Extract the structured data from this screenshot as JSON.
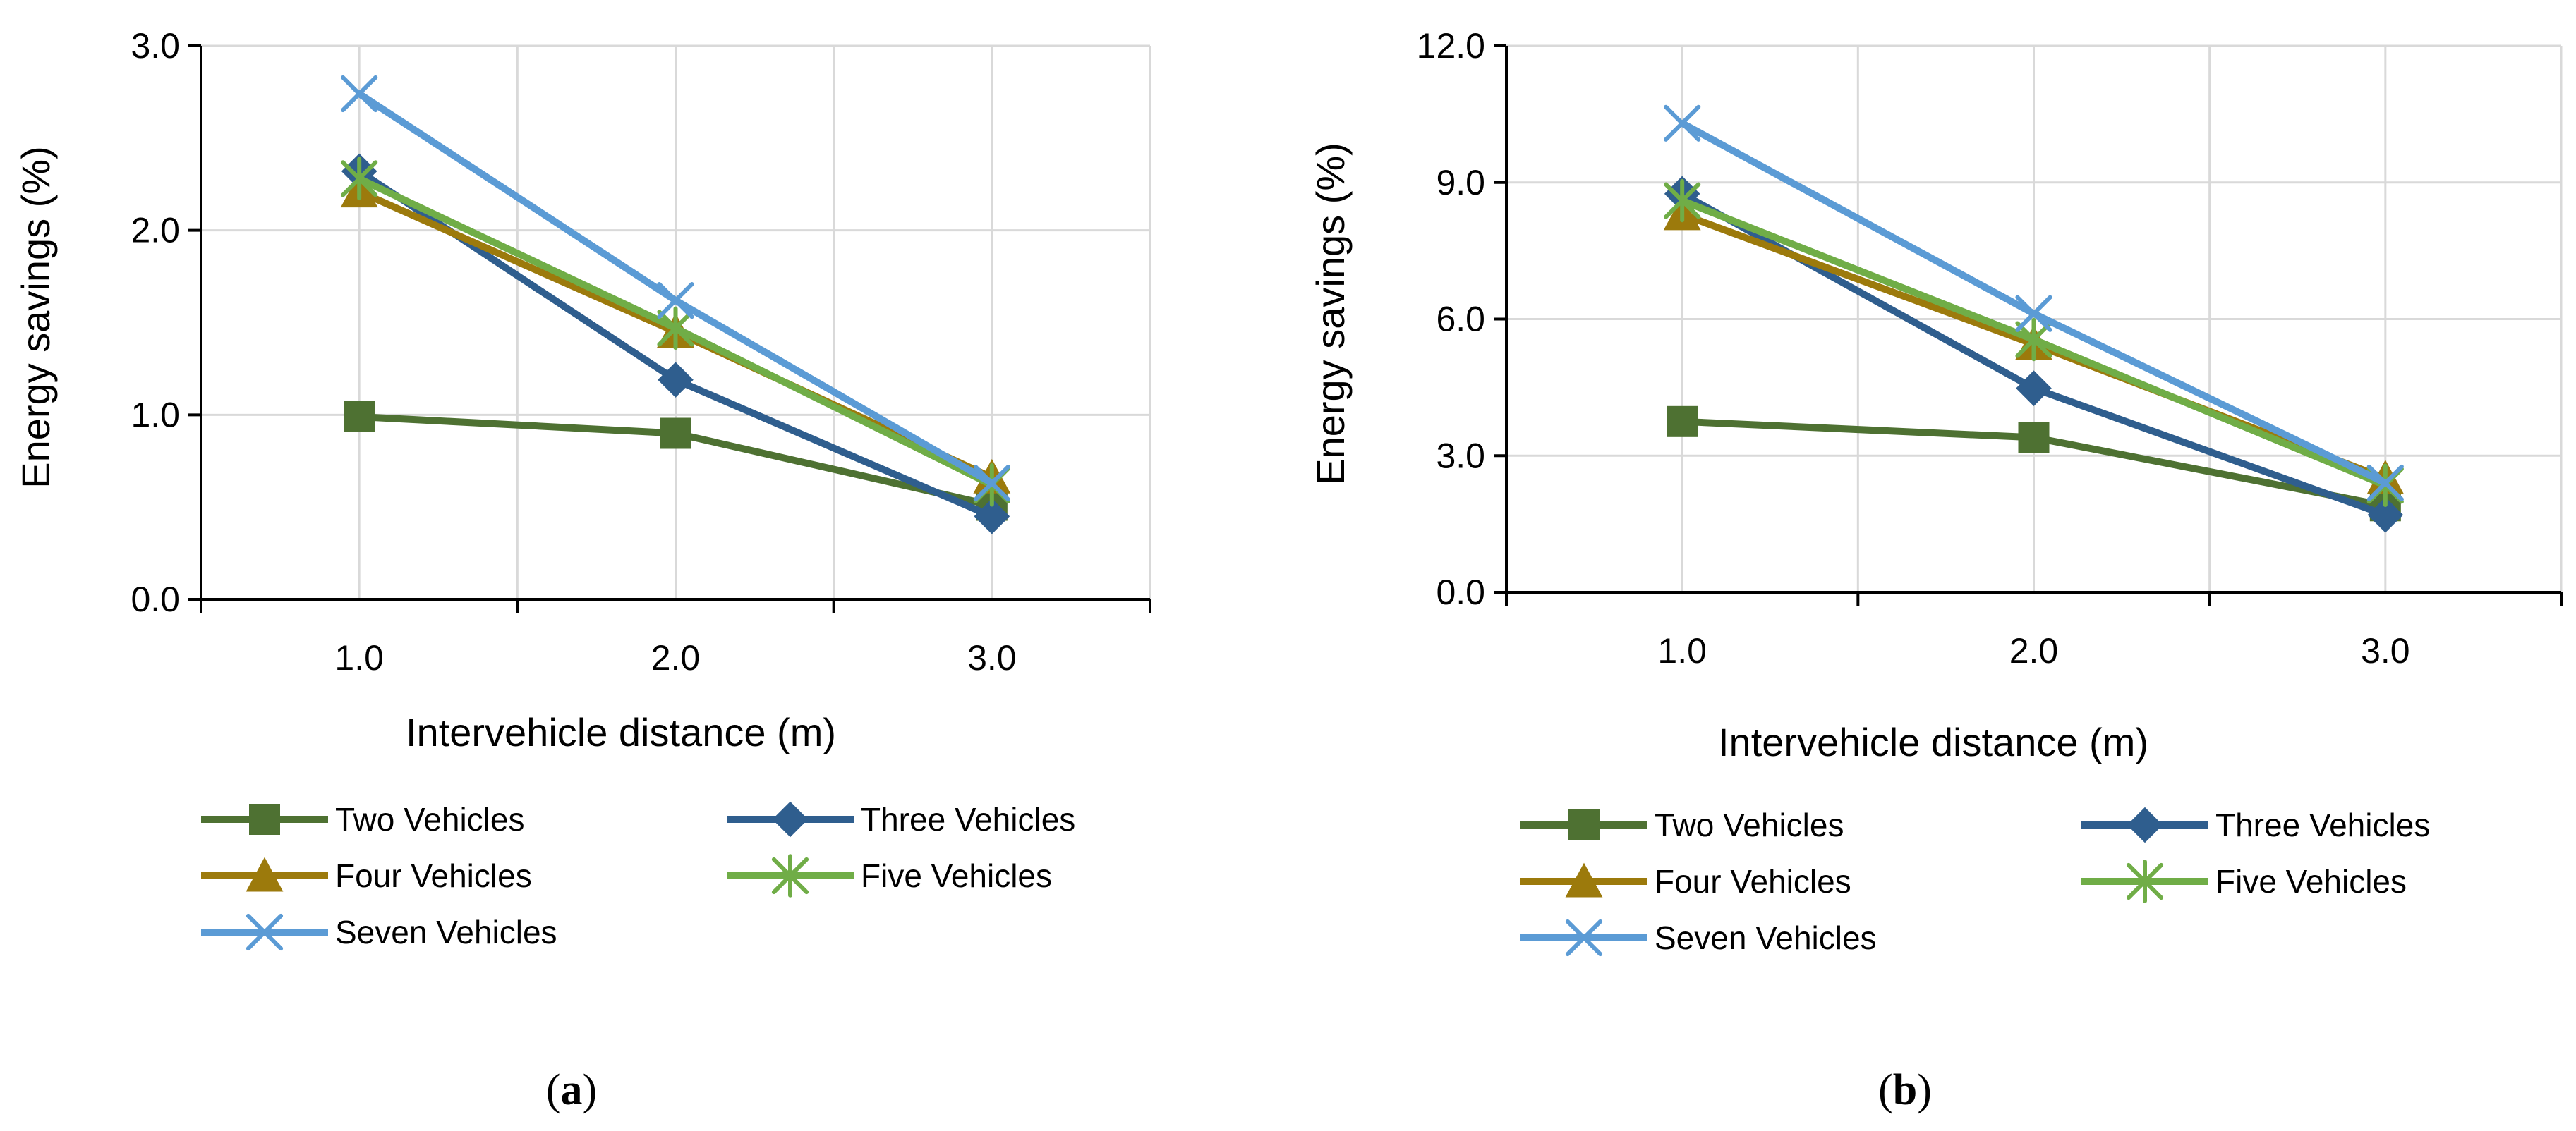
{
  "chart_data": [
    {
      "type": "line",
      "panel_label": "a",
      "title": "",
      "xlabel": "Intervehicle distance (m)",
      "ylabel": "Energy savings (%)",
      "x": [
        1.0,
        2.0,
        3.0
      ],
      "x_tick_labels": [
        "1.0",
        "2.0",
        "3.0"
      ],
      "xlim": [
        0.5,
        3.5
      ],
      "ylim": [
        0.0,
        3.0
      ],
      "y_ticks": [
        0.0,
        1.0,
        2.0,
        3.0
      ],
      "y_tick_labels": [
        "0.0",
        "1.0",
        "2.0",
        "3.0"
      ],
      "grid": true,
      "legend_position": "bottom",
      "series": [
        {
          "name": "Two Vehicles",
          "values": [
            0.99,
            0.9,
            0.51
          ],
          "color": "#4E7132",
          "marker": "square"
        },
        {
          "name": "Three Vehicles",
          "values": [
            2.32,
            1.19,
            0.45
          ],
          "color": "#2F5E8E",
          "marker": "diamond"
        },
        {
          "name": "Four Vehicles",
          "values": [
            2.21,
            1.45,
            0.66
          ],
          "color": "#9C7A0C",
          "marker": "triangle"
        },
        {
          "name": "Five Vehicles",
          "values": [
            2.28,
            1.47,
            0.62
          ],
          "color": "#70AD47",
          "marker": "star"
        },
        {
          "name": "Seven Vehicles",
          "values": [
            2.74,
            1.62,
            0.63
          ],
          "color": "#5B9BD5",
          "marker": "x"
        }
      ]
    },
    {
      "type": "line",
      "panel_label": "b",
      "title": "",
      "xlabel": "Intervehicle distance (m)",
      "ylabel": "Energy savings (%)",
      "x": [
        1.0,
        2.0,
        3.0
      ],
      "x_tick_labels": [
        "1.0",
        "2.0",
        "3.0"
      ],
      "xlim": [
        0.5,
        3.5
      ],
      "ylim": [
        0.0,
        12.0
      ],
      "y_ticks": [
        0.0,
        3.0,
        6.0,
        9.0,
        12.0
      ],
      "y_tick_labels": [
        "0.0",
        "3.0",
        "6.0",
        "9.0",
        "12.0"
      ],
      "grid": true,
      "legend_position": "bottom",
      "series": [
        {
          "name": "Two Vehicles",
          "values": [
            3.75,
            3.4,
            1.9
          ],
          "color": "#4E7132",
          "marker": "square"
        },
        {
          "name": "Three Vehicles",
          "values": [
            8.75,
            4.48,
            1.7
          ],
          "color": "#2F5E8E",
          "marker": "diamond"
        },
        {
          "name": "Four Vehicles",
          "values": [
            8.3,
            5.45,
            2.5
          ],
          "color": "#9C7A0C",
          "marker": "triangle"
        },
        {
          "name": "Five Vehicles",
          "values": [
            8.6,
            5.55,
            2.35
          ],
          "color": "#70AD47",
          "marker": "star"
        },
        {
          "name": "Seven Vehicles",
          "values": [
            10.3,
            6.12,
            2.4
          ],
          "color": "#5B9BD5",
          "marker": "x"
        }
      ]
    }
  ],
  "figure": {
    "background_color": "#FFFFFF",
    "grid_color": "#D9D9D9",
    "axis_color": "#000000"
  }
}
